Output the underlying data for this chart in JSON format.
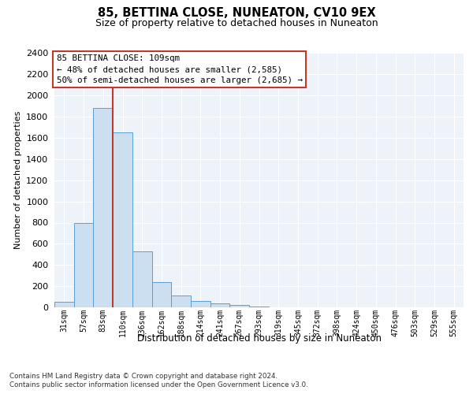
{
  "title": "85, BETTINA CLOSE, NUNEATON, CV10 9EX",
  "subtitle": "Size of property relative to detached houses in Nuneaton",
  "xlabel": "Distribution of detached houses by size in Nuneaton",
  "ylabel": "Number of detached properties",
  "categories": [
    "31sqm",
    "57sqm",
    "83sqm",
    "110sqm",
    "136sqm",
    "162sqm",
    "188sqm",
    "214sqm",
    "241sqm",
    "267sqm",
    "293sqm",
    "319sqm",
    "345sqm",
    "372sqm",
    "398sqm",
    "424sqm",
    "450sqm",
    "476sqm",
    "503sqm",
    "529sqm",
    "555sqm"
  ],
  "values": [
    55,
    800,
    1880,
    1650,
    530,
    240,
    110,
    60,
    35,
    20,
    10,
    0,
    0,
    0,
    0,
    0,
    0,
    0,
    0,
    0,
    0
  ],
  "bar_color": "#ccdff0",
  "bar_edge_color": "#5a9fd4",
  "vline_color": "#c0392b",
  "annotation_box_color": "#c0392b",
  "annotation_line1": "85 BETTINA CLOSE: 109sqm",
  "annotation_line2": "← 48% of detached houses are smaller (2,585)",
  "annotation_line3": "50% of semi-detached houses are larger (2,685) →",
  "ylim": [
    0,
    2400
  ],
  "yticks": [
    0,
    200,
    400,
    600,
    800,
    1000,
    1200,
    1400,
    1600,
    1800,
    2000,
    2200,
    2400
  ],
  "plot_bg_color": "#eef3f9",
  "footer_line1": "Contains HM Land Registry data © Crown copyright and database right 2024.",
  "footer_line2": "Contains public sector information licensed under the Open Government Licence v3.0."
}
